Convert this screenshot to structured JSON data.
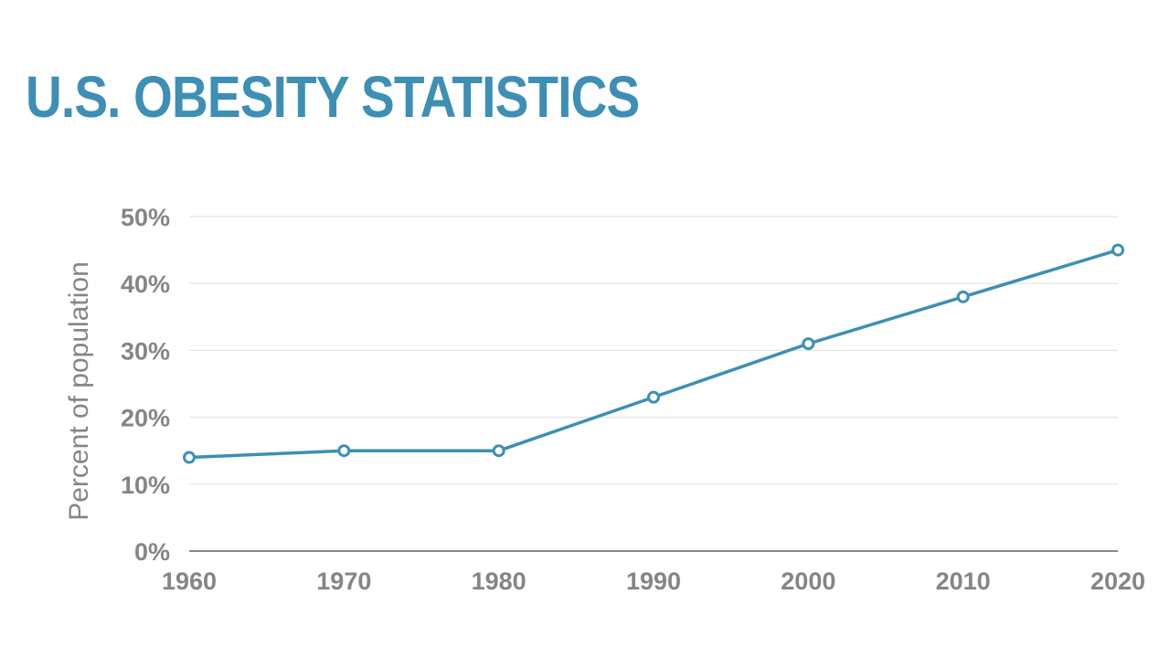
{
  "colors": {
    "accent": "#3d8fb5",
    "tick_text": "#858585",
    "grid": "#e3e3e3",
    "axis": "#8a8a8a"
  },
  "chart_data": {
    "type": "line",
    "title": "U.S. OBESITY STATISTICS",
    "xlabel": "",
    "ylabel": "Percent of population",
    "x": [
      1960,
      1970,
      1980,
      1990,
      2000,
      2010,
      2020
    ],
    "x_tick_labels": [
      "1960",
      "1970",
      "1980",
      "1990",
      "2000",
      "2010",
      "2020"
    ],
    "y_ticks": [
      0,
      10,
      20,
      30,
      40,
      50
    ],
    "y_tick_labels": [
      "0%",
      "10%",
      "20%",
      "30%",
      "40%",
      "50%"
    ],
    "series": [
      {
        "values": [
          14,
          15,
          15,
          23,
          31,
          38,
          45
        ]
      }
    ],
    "xlim": [
      1960,
      2020
    ],
    "ylim": [
      0,
      50
    ],
    "grid": true,
    "legend": "none",
    "markers": "hollow-circle"
  }
}
